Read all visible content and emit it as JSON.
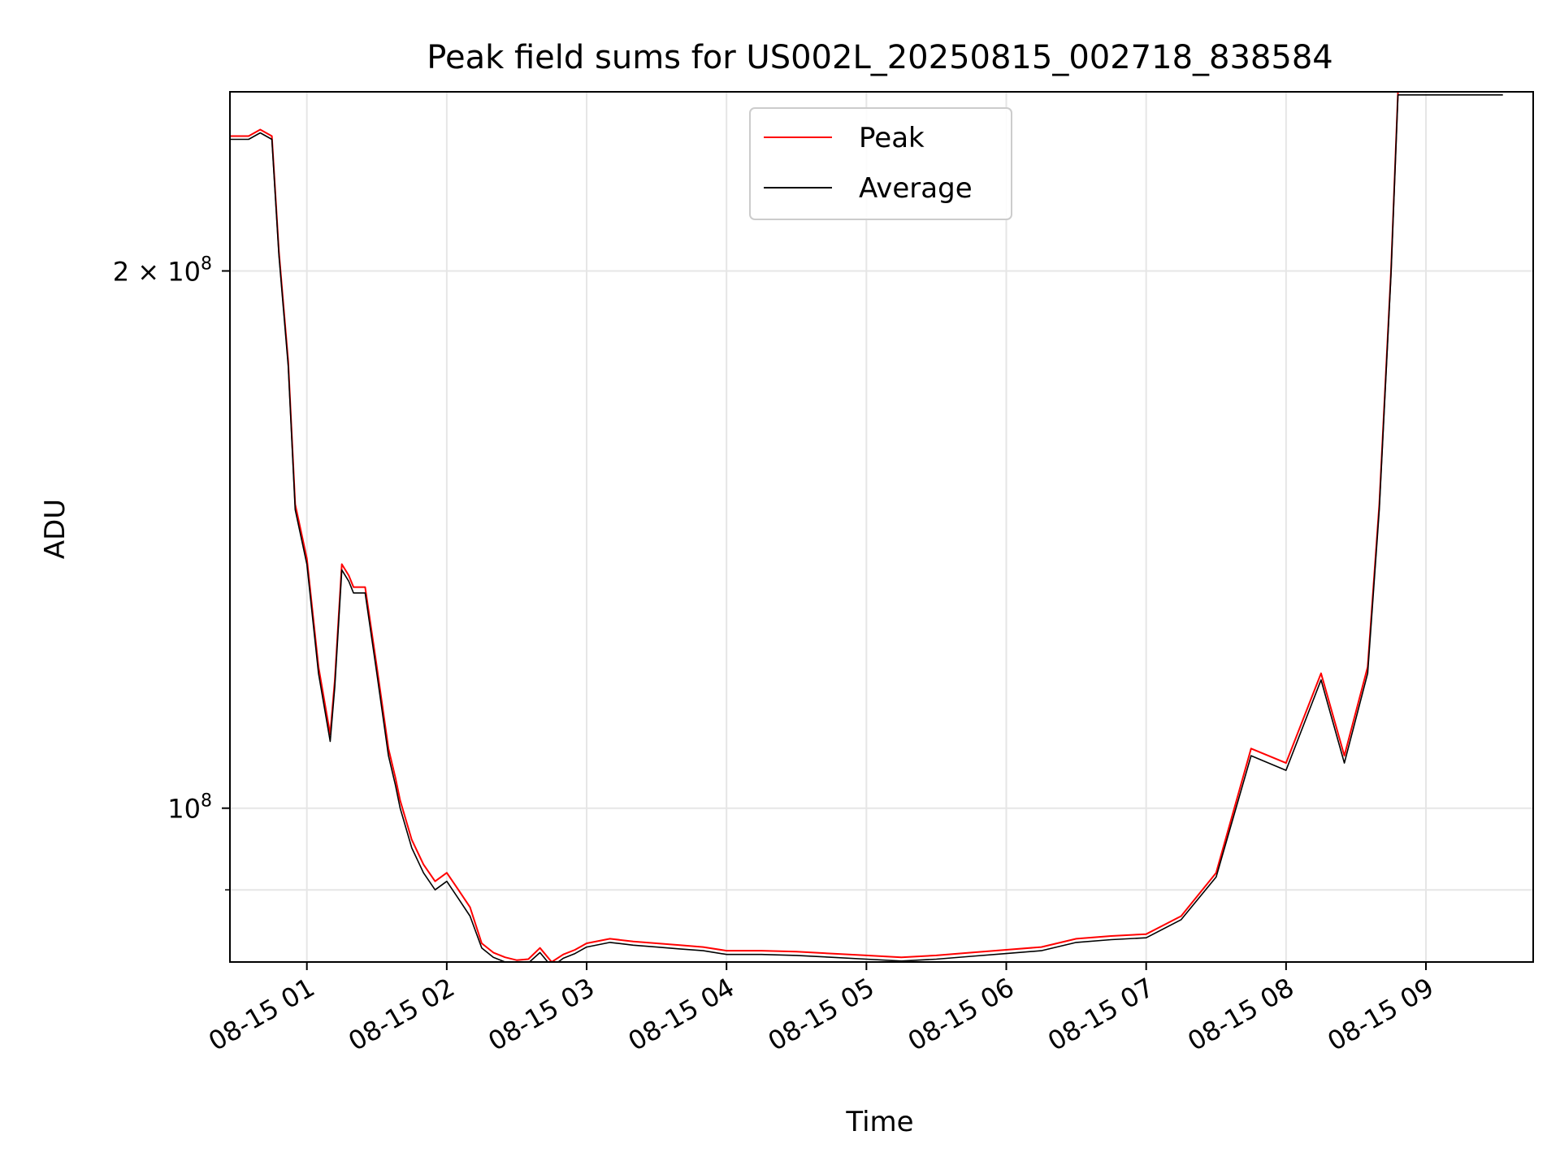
{
  "chart_data": {
    "type": "line",
    "title": "Peak field sums for US002L_20250815_002718_838584",
    "xlabel": "Time",
    "ylabel": "ADU",
    "x_scale": "time",
    "y_scale": "log",
    "xlim": [
      "2025-08-15 00:27",
      "2025-08-15 09:46"
    ],
    "ylim": [
      82000000,
      252000000
    ],
    "grid": true,
    "legend_position": "top-center",
    "x_ticks": [
      {
        "value": "2025-08-15 01:00",
        "label": "08-15 01"
      },
      {
        "value": "2025-08-15 02:00",
        "label": "08-15 02"
      },
      {
        "value": "2025-08-15 03:00",
        "label": "08-15 03"
      },
      {
        "value": "2025-08-15 04:00",
        "label": "08-15 04"
      },
      {
        "value": "2025-08-15 05:00",
        "label": "08-15 05"
      },
      {
        "value": "2025-08-15 06:00",
        "label": "08-15 06"
      },
      {
        "value": "2025-08-15 07:00",
        "label": "08-15 07"
      },
      {
        "value": "2025-08-15 08:00",
        "label": "08-15 08"
      },
      {
        "value": "2025-08-15 09:00",
        "label": "08-15 09"
      }
    ],
    "y_ticks": [
      {
        "value": 100000000,
        "base": "10",
        "exp": "8"
      },
      {
        "value": 200000000,
        "base": "2 × 10",
        "exp": "8"
      }
    ],
    "y_minor_ticks": [
      90000000
    ],
    "series": [
      {
        "name": "Peak",
        "color": "#ff0000",
        "x": [
          "2025-08-15 00:27",
          "2025-08-15 00:35",
          "2025-08-15 00:40",
          "2025-08-15 00:45",
          "2025-08-15 00:48",
          "2025-08-15 00:52",
          "2025-08-15 00:55",
          "2025-08-15 01:00",
          "2025-08-15 01:05",
          "2025-08-15 01:10",
          "2025-08-15 01:12",
          "2025-08-15 01:15",
          "2025-08-15 01:18",
          "2025-08-15 01:20",
          "2025-08-15 01:25",
          "2025-08-15 01:30",
          "2025-08-15 01:35",
          "2025-08-15 01:38",
          "2025-08-15 01:40",
          "2025-08-15 01:45",
          "2025-08-15 01:50",
          "2025-08-15 01:55",
          "2025-08-15 02:00",
          "2025-08-15 02:05",
          "2025-08-15 02:10",
          "2025-08-15 02:15",
          "2025-08-15 02:20",
          "2025-08-15 02:25",
          "2025-08-15 02:30",
          "2025-08-15 02:35",
          "2025-08-15 02:40",
          "2025-08-15 02:45",
          "2025-08-15 02:50",
          "2025-08-15 02:55",
          "2025-08-15 03:00",
          "2025-08-15 03:10",
          "2025-08-15 03:20",
          "2025-08-15 03:30",
          "2025-08-15 03:40",
          "2025-08-15 03:50",
          "2025-08-15 04:00",
          "2025-08-15 04:15",
          "2025-08-15 04:30",
          "2025-08-15 04:45",
          "2025-08-15 05:00",
          "2025-08-15 05:15",
          "2025-08-15 05:30",
          "2025-08-15 05:45",
          "2025-08-15 06:00",
          "2025-08-15 06:15",
          "2025-08-15 06:30",
          "2025-08-15 06:45",
          "2025-08-15 07:00",
          "2025-08-15 07:15",
          "2025-08-15 07:30",
          "2025-08-15 07:45",
          "2025-08-15 08:00",
          "2025-08-15 08:15",
          "2025-08-15 08:25",
          "2025-08-15 08:35",
          "2025-08-15 08:40",
          "2025-08-15 08:45",
          "2025-08-15 08:48",
          "2025-08-15 08:52",
          "2025-08-15 08:55",
          "2025-08-15 08:58",
          "2025-08-15 09:02",
          "2025-08-15 09:05",
          "2025-08-15 09:08",
          "2025-08-15 09:12",
          "2025-08-15 09:15",
          "2025-08-15 09:18",
          "2025-08-15 09:21",
          "2025-08-15 09:24",
          "2025-08-15 09:27",
          "2025-08-15 09:30",
          "2025-08-15 09:33"
        ],
        "values": [
          238000000,
          238000000,
          240000000,
          238000000,
          205000000,
          178000000,
          148000000,
          138000000,
          120000000,
          110000000,
          118000000,
          137000000,
          135000000,
          133000000,
          133000000,
          120000000,
          108000000,
          104000000,
          101000000,
          96000000,
          93000000,
          91000000,
          92000000,
          90000000,
          88000000,
          84000000,
          83000000,
          82500000,
          82200000,
          82300000,
          83500000,
          82000000,
          82800000,
          83300000,
          84000000,
          84500000,
          84200000,
          84000000,
          83800000,
          83600000,
          83200000,
          83200000,
          83100000,
          82900000,
          82700000,
          82500000,
          82700000,
          83000000,
          83300000,
          83600000,
          84500000,
          84800000,
          85000000,
          87000000,
          92000000,
          108000000,
          106000000,
          119000000,
          107000000,
          120000000,
          148000000,
          200000000,
          252000000,
          252000000,
          252000000,
          252000000,
          252000000,
          252000000,
          252000000,
          252000000,
          252000000,
          252000000,
          252000000,
          252000000,
          252000000,
          252000000,
          252000000
        ]
      },
      {
        "name": "Average",
        "color": "#000000",
        "x": [
          "2025-08-15 00:27",
          "2025-08-15 00:35",
          "2025-08-15 00:40",
          "2025-08-15 00:45",
          "2025-08-15 00:48",
          "2025-08-15 00:52",
          "2025-08-15 00:55",
          "2025-08-15 01:00",
          "2025-08-15 01:05",
          "2025-08-15 01:10",
          "2025-08-15 01:12",
          "2025-08-15 01:15",
          "2025-08-15 01:18",
          "2025-08-15 01:20",
          "2025-08-15 01:25",
          "2025-08-15 01:30",
          "2025-08-15 01:35",
          "2025-08-15 01:38",
          "2025-08-15 01:40",
          "2025-08-15 01:45",
          "2025-08-15 01:50",
          "2025-08-15 01:55",
          "2025-08-15 02:00",
          "2025-08-15 02:05",
          "2025-08-15 02:10",
          "2025-08-15 02:15",
          "2025-08-15 02:20",
          "2025-08-15 02:25",
          "2025-08-15 02:30",
          "2025-08-15 02:35",
          "2025-08-15 02:40",
          "2025-08-15 02:45",
          "2025-08-15 02:50",
          "2025-08-15 02:55",
          "2025-08-15 03:00",
          "2025-08-15 03:10",
          "2025-08-15 03:20",
          "2025-08-15 03:30",
          "2025-08-15 03:40",
          "2025-08-15 03:50",
          "2025-08-15 04:00",
          "2025-08-15 04:15",
          "2025-08-15 04:30",
          "2025-08-15 04:45",
          "2025-08-15 05:00",
          "2025-08-15 05:15",
          "2025-08-15 05:30",
          "2025-08-15 05:45",
          "2025-08-15 06:00",
          "2025-08-15 06:15",
          "2025-08-15 06:30",
          "2025-08-15 06:45",
          "2025-08-15 07:00",
          "2025-08-15 07:15",
          "2025-08-15 07:30",
          "2025-08-15 07:45",
          "2025-08-15 08:00",
          "2025-08-15 08:15",
          "2025-08-15 08:25",
          "2025-08-15 08:35",
          "2025-08-15 08:40",
          "2025-08-15 08:45",
          "2025-08-15 08:48",
          "2025-08-15 08:52",
          "2025-08-15 08:55",
          "2025-08-15 08:58",
          "2025-08-15 09:02",
          "2025-08-15 09:05",
          "2025-08-15 09:08",
          "2025-08-15 09:12",
          "2025-08-15 09:15",
          "2025-08-15 09:18",
          "2025-08-15 09:21",
          "2025-08-15 09:24",
          "2025-08-15 09:27",
          "2025-08-15 09:30",
          "2025-08-15 09:33"
        ],
        "values": [
          237000000,
          237000000,
          239000000,
          237000000,
          204000000,
          177000000,
          147000000,
          137000000,
          119000000,
          109000000,
          117000000,
          136000000,
          134000000,
          132000000,
          132000000,
          119000000,
          107000000,
          103000000,
          100000000,
          95000000,
          92000000,
          90000000,
          91000000,
          89000000,
          87000000,
          83500000,
          82500000,
          82000000,
          81800000,
          81900000,
          83000000,
          81500000,
          82400000,
          82900000,
          83600000,
          84100000,
          83800000,
          83600000,
          83400000,
          83200000,
          82800000,
          82800000,
          82700000,
          82500000,
          82300000,
          82100000,
          82300000,
          82600000,
          82900000,
          83200000,
          84100000,
          84400000,
          84600000,
          86600000,
          91500000,
          107000000,
          105000000,
          118000000,
          106000000,
          119000000,
          147000000,
          199000000,
          251000000,
          251000000,
          251000000,
          251000000,
          251000000,
          251000000,
          251000000,
          251000000,
          251000000,
          251000000,
          251000000,
          251000000,
          251000000,
          251000000,
          251000000
        ]
      }
    ]
  }
}
